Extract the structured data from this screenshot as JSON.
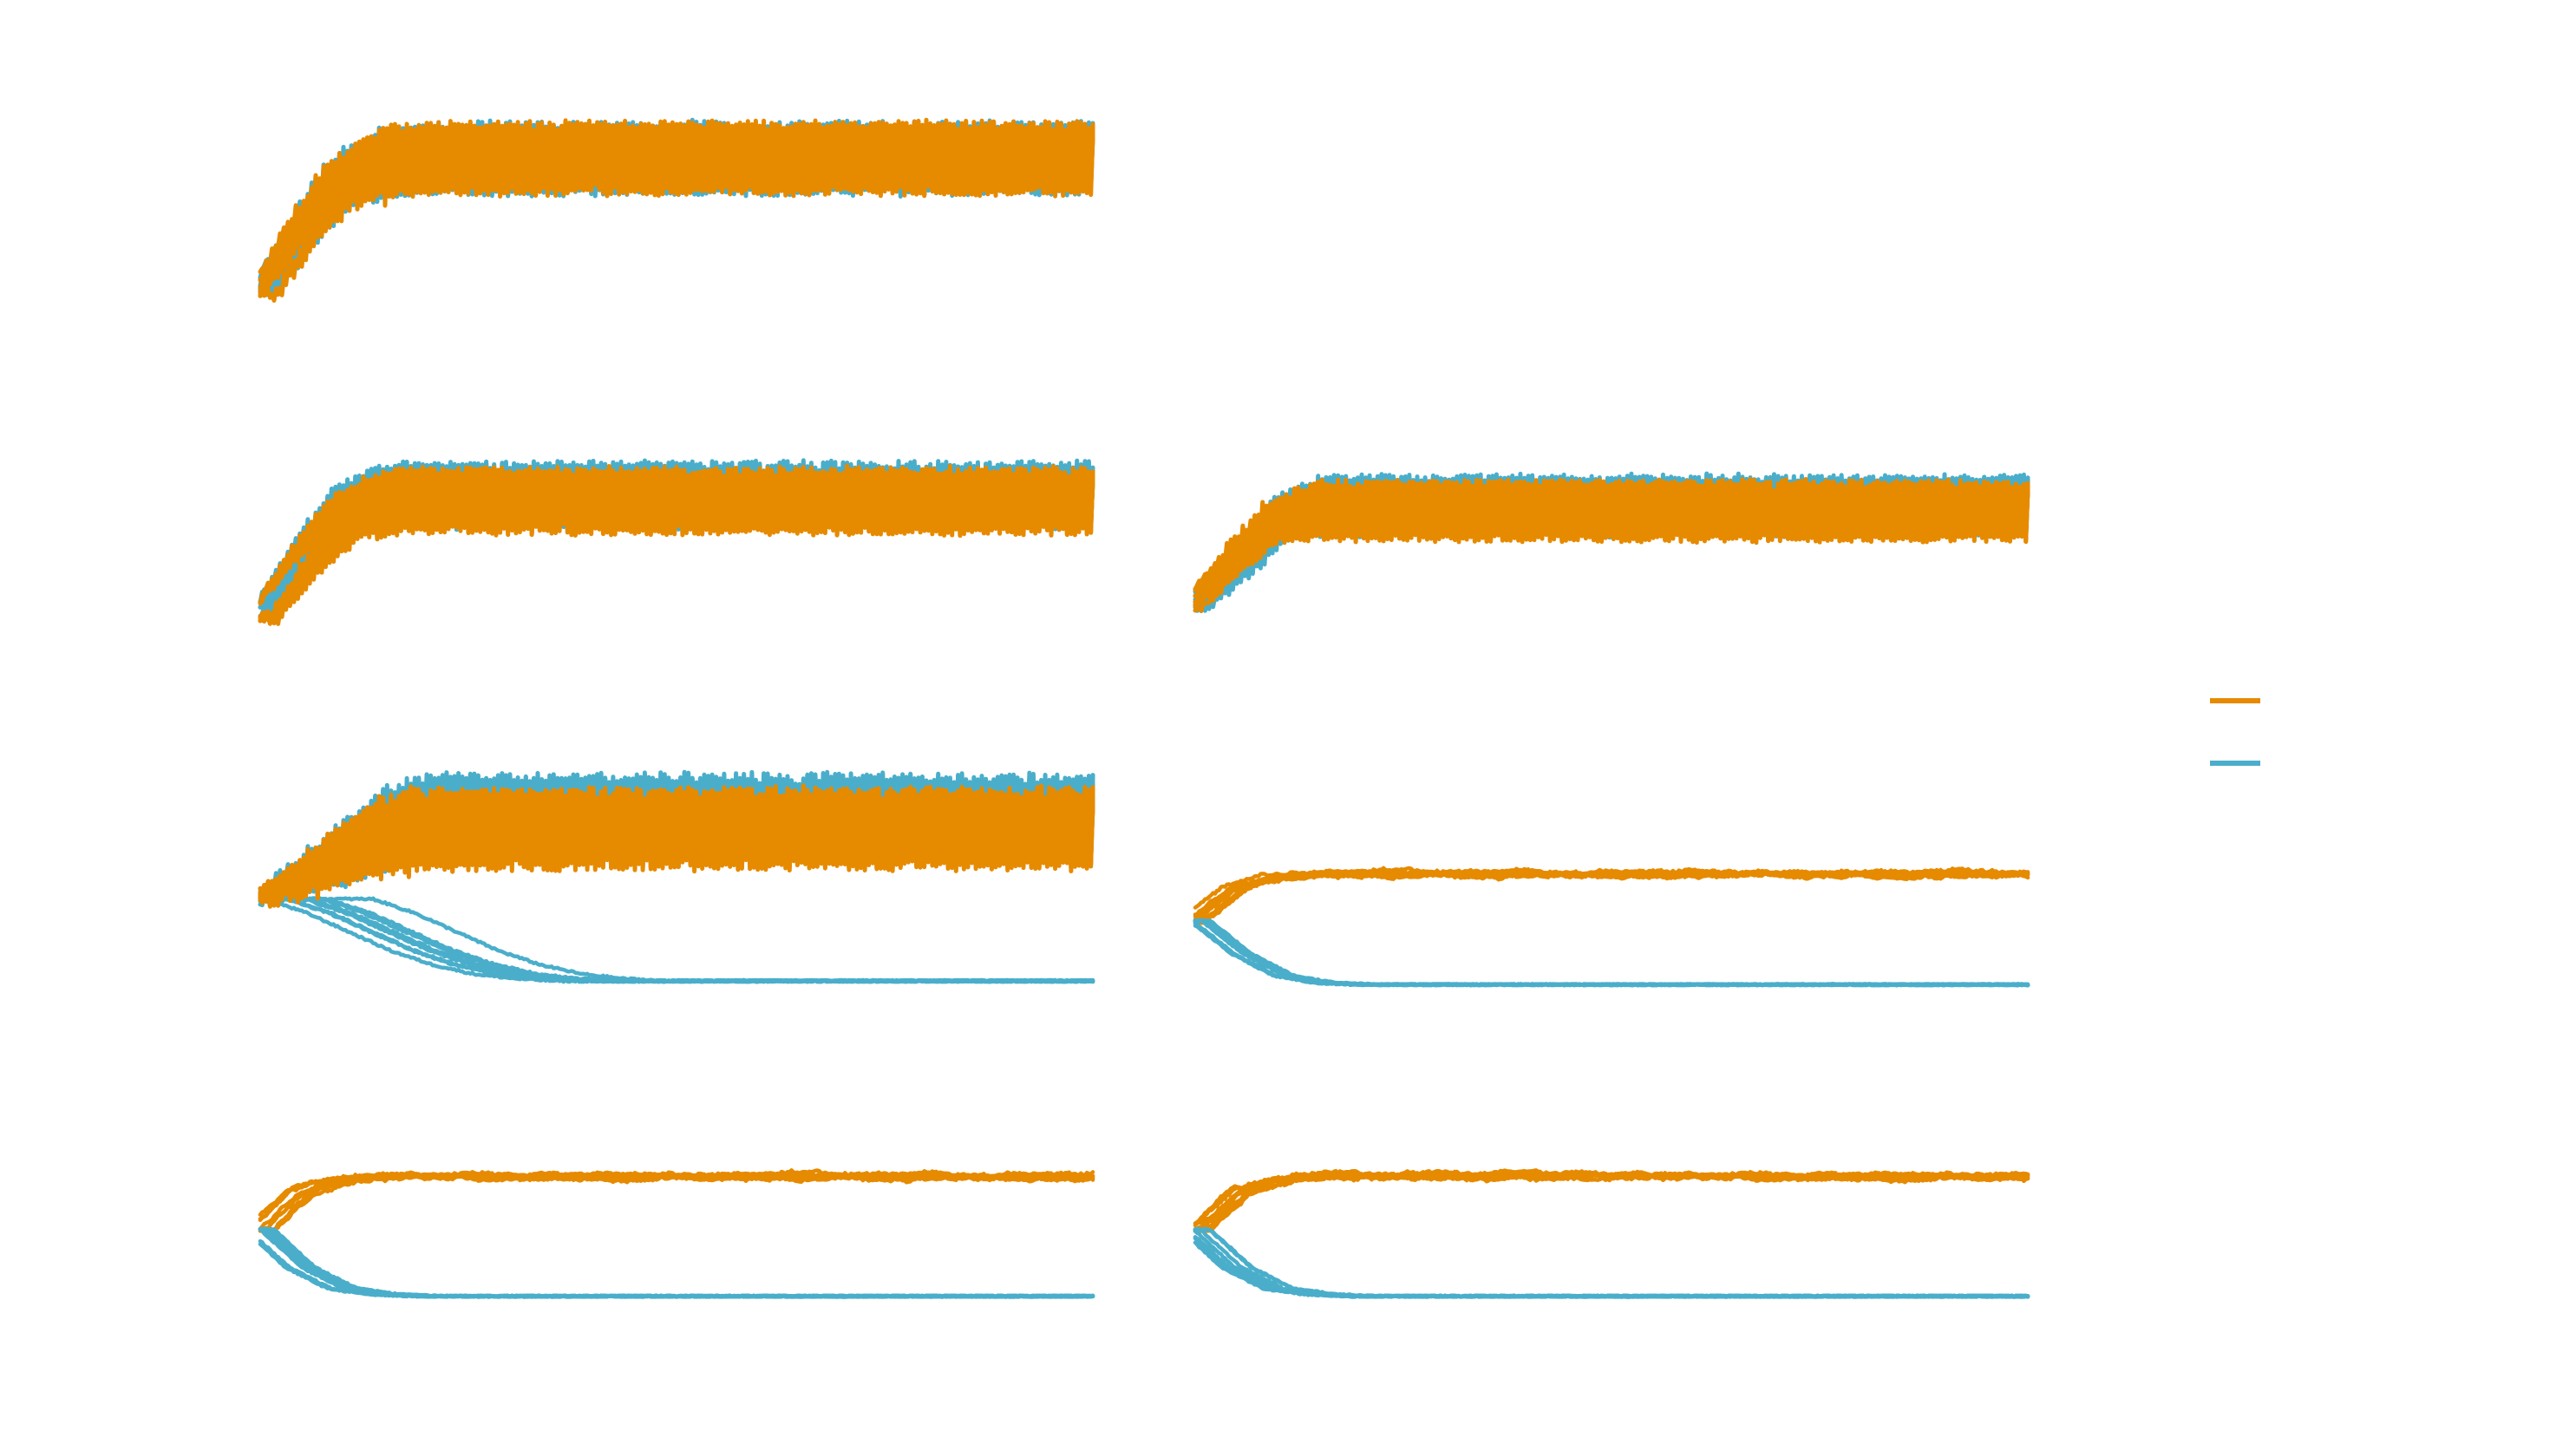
{
  "colors": {
    "orange": "#e68a00",
    "blue": "#4aaecb",
    "background": "#ffffff"
  },
  "legend": {
    "placement": "right",
    "entries": [
      {
        "color": "orange",
        "label": ""
      },
      {
        "color": "blue",
        "label": ""
      }
    ]
  },
  "chart_data": [
    {
      "type": "line",
      "panel": "row1-col1",
      "title": "",
      "xlabel": "",
      "ylabel": "",
      "x": [
        0,
        5,
        10,
        15,
        20,
        25,
        30,
        35,
        40,
        45,
        50,
        55,
        60,
        65,
        70,
        75,
        80,
        85,
        90,
        95,
        100
      ],
      "ylim": [
        0,
        1
      ],
      "grid": false,
      "series": [
        {
          "color": "blue",
          "pattern": "ramp-then-oscillate",
          "values": [
            0.1,
            0.42,
            0.66,
            0.72,
            0.74,
            0.74,
            0.74,
            0.74,
            0.74,
            0.74,
            0.74,
            0.74,
            0.74,
            0.74,
            0.74,
            0.74,
            0.74,
            0.74,
            0.74,
            0.74,
            0.74
          ]
        },
        {
          "color": "orange",
          "pattern": "ramp-then-oscillate",
          "values": [
            0.08,
            0.4,
            0.64,
            0.72,
            0.74,
            0.74,
            0.74,
            0.74,
            0.74,
            0.74,
            0.74,
            0.74,
            0.74,
            0.74,
            0.74,
            0.74,
            0.74,
            0.74,
            0.74,
            0.74,
            0.74
          ]
        }
      ]
    },
    {
      "type": "line",
      "panel": "row2-col1",
      "title": "",
      "xlabel": "",
      "ylabel": "",
      "x": [
        0,
        5,
        10,
        15,
        20,
        25,
        30,
        35,
        40,
        45,
        50,
        55,
        60,
        65,
        70,
        75,
        80,
        85,
        90,
        95,
        100
      ],
      "ylim": [
        0,
        1
      ],
      "grid": false,
      "series": [
        {
          "color": "blue",
          "pattern": "ramp-then-oscillate",
          "values": [
            0.06,
            0.38,
            0.64,
            0.7,
            0.7,
            0.7,
            0.7,
            0.7,
            0.7,
            0.7,
            0.7,
            0.7,
            0.7,
            0.7,
            0.7,
            0.7,
            0.7,
            0.7,
            0.7,
            0.7,
            0.7
          ]
        },
        {
          "color": "orange",
          "pattern": "ramp-then-oscillate",
          "values": [
            0.06,
            0.36,
            0.6,
            0.67,
            0.67,
            0.67,
            0.67,
            0.67,
            0.67,
            0.67,
            0.67,
            0.67,
            0.67,
            0.67,
            0.67,
            0.67,
            0.67,
            0.67,
            0.67,
            0.67,
            0.67
          ]
        }
      ]
    },
    {
      "type": "line",
      "panel": "row2-col2",
      "title": "",
      "xlabel": "",
      "ylabel": "",
      "x": [
        0,
        5,
        10,
        15,
        20,
        25,
        30,
        35,
        40,
        45,
        50,
        55,
        60,
        65,
        70,
        75,
        80,
        85,
        90,
        95,
        100
      ],
      "ylim": [
        0,
        1
      ],
      "grid": false,
      "series": [
        {
          "color": "blue",
          "pattern": "ramp-then-oscillate",
          "values": [
            0.08,
            0.32,
            0.6,
            0.66,
            0.66,
            0.66,
            0.66,
            0.66,
            0.66,
            0.66,
            0.66,
            0.66,
            0.66,
            0.66,
            0.66,
            0.66,
            0.66,
            0.66,
            0.66,
            0.66,
            0.66
          ]
        },
        {
          "color": "orange",
          "pattern": "ramp-then-oscillate",
          "values": [
            0.08,
            0.36,
            0.58,
            0.63,
            0.63,
            0.63,
            0.63,
            0.63,
            0.63,
            0.63,
            0.63,
            0.63,
            0.63,
            0.63,
            0.63,
            0.63,
            0.63,
            0.63,
            0.63,
            0.63,
            0.63
          ]
        }
      ]
    },
    {
      "type": "line",
      "panel": "row3-col1",
      "title": "",
      "xlabel": "",
      "ylabel": "",
      "x": [
        0,
        5,
        10,
        15,
        20,
        25,
        30,
        35,
        40,
        45,
        50,
        55,
        60,
        65,
        70,
        75,
        80,
        85,
        90,
        95,
        100
      ],
      "ylim": [
        0,
        1
      ],
      "grid": false,
      "series": [
        {
          "color": "blue",
          "pattern": "ramp-then-oscillate",
          "values": [
            0.42,
            0.52,
            0.62,
            0.72,
            0.78,
            0.78,
            0.78,
            0.78,
            0.78,
            0.78,
            0.78,
            0.78,
            0.78,
            0.78,
            0.78,
            0.78,
            0.78,
            0.78,
            0.78,
            0.78,
            0.78
          ]
        },
        {
          "color": "blue",
          "pattern": "decay",
          "values": [
            0.42,
            0.36,
            0.28,
            0.2,
            0.14,
            0.1,
            0.08,
            0.07,
            0.07,
            0.07,
            0.07,
            0.07,
            0.07,
            0.07,
            0.07,
            0.07,
            0.07,
            0.07,
            0.07,
            0.07,
            0.07
          ]
        },
        {
          "color": "orange",
          "pattern": "ramp-then-oscillate",
          "values": [
            0.42,
            0.5,
            0.6,
            0.68,
            0.72,
            0.72,
            0.72,
            0.72,
            0.72,
            0.72,
            0.72,
            0.72,
            0.72,
            0.72,
            0.72,
            0.72,
            0.72,
            0.72,
            0.72,
            0.72,
            0.72
          ]
        }
      ]
    },
    {
      "type": "line",
      "panel": "row3-col2",
      "title": "",
      "xlabel": "",
      "ylabel": "",
      "x": [
        0,
        5,
        10,
        15,
        20,
        25,
        30,
        35,
        40,
        45,
        50,
        55,
        60,
        65,
        70,
        75,
        80,
        85,
        90,
        95,
        100
      ],
      "ylim": [
        0,
        1
      ],
      "grid": false,
      "series": [
        {
          "color": "orange",
          "pattern": "plateau",
          "values": [
            0.42,
            0.6,
            0.66,
            0.68,
            0.68,
            0.68,
            0.68,
            0.68,
            0.68,
            0.68,
            0.68,
            0.68,
            0.68,
            0.68,
            0.68,
            0.68,
            0.68,
            0.68,
            0.68,
            0.68,
            0.68
          ]
        },
        {
          "color": "blue",
          "pattern": "decay",
          "values": [
            0.42,
            0.24,
            0.12,
            0.08,
            0.07,
            0.07,
            0.07,
            0.07,
            0.07,
            0.07,
            0.07,
            0.07,
            0.07,
            0.07,
            0.07,
            0.07,
            0.07,
            0.07,
            0.07,
            0.07,
            0.07
          ]
        }
      ]
    },
    {
      "type": "line",
      "panel": "row4-col1",
      "title": "",
      "xlabel": "",
      "ylabel": "",
      "x": [
        0,
        5,
        10,
        15,
        20,
        25,
        30,
        35,
        40,
        45,
        50,
        55,
        60,
        65,
        70,
        75,
        80,
        85,
        90,
        95,
        100
      ],
      "ylim": [
        0,
        1
      ],
      "grid": false,
      "series": [
        {
          "color": "orange",
          "pattern": "plateau",
          "values": [
            0.42,
            0.62,
            0.68,
            0.7,
            0.7,
            0.7,
            0.7,
            0.7,
            0.7,
            0.7,
            0.7,
            0.7,
            0.7,
            0.7,
            0.7,
            0.7,
            0.7,
            0.7,
            0.7,
            0.7,
            0.7
          ]
        },
        {
          "color": "blue",
          "pattern": "decay",
          "values": [
            0.42,
            0.22,
            0.11,
            0.08,
            0.07,
            0.07,
            0.07,
            0.07,
            0.07,
            0.07,
            0.07,
            0.07,
            0.07,
            0.07,
            0.07,
            0.07,
            0.07,
            0.07,
            0.07,
            0.07,
            0.07
          ]
        }
      ]
    },
    {
      "type": "line",
      "panel": "row4-col2",
      "title": "",
      "xlabel": "",
      "ylabel": "",
      "x": [
        0,
        5,
        10,
        15,
        20,
        25,
        30,
        35,
        40,
        45,
        50,
        55,
        60,
        65,
        70,
        75,
        80,
        85,
        90,
        95,
        100
      ],
      "ylim": [
        0,
        1
      ],
      "grid": false,
      "series": [
        {
          "color": "orange",
          "pattern": "plateau",
          "values": [
            0.42,
            0.62,
            0.68,
            0.7,
            0.7,
            0.7,
            0.7,
            0.7,
            0.7,
            0.7,
            0.7,
            0.7,
            0.7,
            0.7,
            0.7,
            0.7,
            0.7,
            0.7,
            0.7,
            0.7,
            0.7
          ]
        },
        {
          "color": "blue",
          "pattern": "decay",
          "values": [
            0.42,
            0.22,
            0.11,
            0.08,
            0.07,
            0.07,
            0.07,
            0.07,
            0.07,
            0.07,
            0.07,
            0.07,
            0.07,
            0.07,
            0.07,
            0.07,
            0.07,
            0.07,
            0.07,
            0.07,
            0.07
          ]
        }
      ]
    }
  ]
}
